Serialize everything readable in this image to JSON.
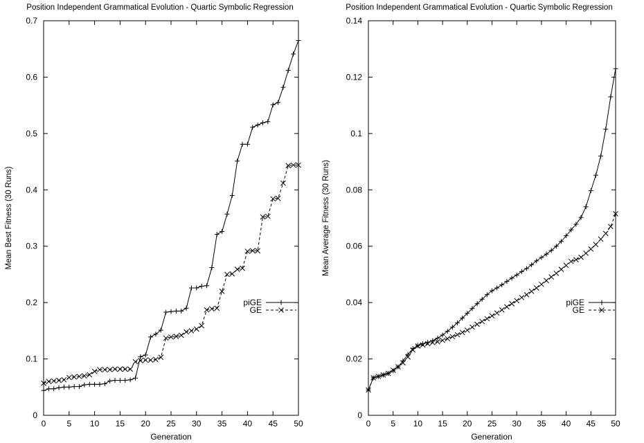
{
  "chart_data": [
    {
      "type": "line",
      "title": "Position Independent Grammatical Evolution - Quartic Symbolic Regression",
      "xlabel": "Generation",
      "ylabel": "Mean Best Fitness (30 Runs)",
      "xlim": [
        0,
        50
      ],
      "ylim": [
        0,
        0.7
      ],
      "xticks": [
        0,
        5,
        10,
        15,
        20,
        25,
        30,
        35,
        40,
        45,
        50
      ],
      "yticks": [
        0,
        0.1,
        0.2,
        0.3,
        0.4,
        0.5,
        0.6,
        0.7
      ],
      "ytick_labels": [
        "0",
        "0.1",
        "0.2",
        "0.3",
        "0.4",
        "0.5",
        "0.6",
        "0.7"
      ],
      "grid": false,
      "legend_position": "right",
      "series": [
        {
          "name": "piGE",
          "marker": "plus",
          "dash": "solid",
          "x": [
            0,
            1,
            2,
            3,
            4,
            5,
            6,
            7,
            8,
            9,
            10,
            11,
            12,
            13,
            14,
            15,
            16,
            17,
            18,
            19,
            20,
            21,
            22,
            23,
            24,
            25,
            26,
            27,
            28,
            29,
            30,
            31,
            32,
            33,
            34,
            35,
            36,
            37,
            38,
            39,
            40,
            41,
            42,
            43,
            44,
            45,
            46,
            47,
            48,
            49,
            50
          ],
          "values": [
            0.044,
            0.047,
            0.047,
            0.049,
            0.05,
            0.05,
            0.051,
            0.051,
            0.054,
            0.055,
            0.055,
            0.055,
            0.056,
            0.061,
            0.062,
            0.062,
            0.062,
            0.063,
            0.066,
            0.104,
            0.107,
            0.139,
            0.144,
            0.151,
            0.183,
            0.184,
            0.185,
            0.185,
            0.19,
            0.226,
            0.226,
            0.229,
            0.23,
            0.262,
            0.321,
            0.326,
            0.357,
            0.39,
            0.451,
            0.481,
            0.481,
            0.511,
            0.515,
            0.519,
            0.521,
            0.551,
            0.555,
            0.582,
            0.612,
            0.641,
            0.665
          ]
        },
        {
          "name": "GE",
          "marker": "cross",
          "dash": "dashed",
          "x": [
            0,
            1,
            2,
            3,
            4,
            5,
            6,
            7,
            8,
            9,
            10,
            11,
            12,
            13,
            14,
            15,
            16,
            17,
            18,
            19,
            20,
            21,
            22,
            23,
            24,
            25,
            26,
            27,
            28,
            29,
            30,
            31,
            32,
            33,
            34,
            35,
            36,
            37,
            38,
            39,
            40,
            41,
            42,
            43,
            44,
            45,
            46,
            47,
            48,
            49,
            50
          ],
          "values": [
            0.057,
            0.06,
            0.061,
            0.062,
            0.063,
            0.067,
            0.068,
            0.069,
            0.07,
            0.072,
            0.078,
            0.081,
            0.081,
            0.081,
            0.082,
            0.082,
            0.082,
            0.082,
            0.095,
            0.097,
            0.098,
            0.098,
            0.099,
            0.103,
            0.137,
            0.139,
            0.14,
            0.142,
            0.148,
            0.15,
            0.153,
            0.159,
            0.187,
            0.189,
            0.19,
            0.22,
            0.25,
            0.251,
            0.259,
            0.261,
            0.291,
            0.292,
            0.292,
            0.352,
            0.353,
            0.384,
            0.385,
            0.412,
            0.443,
            0.444,
            0.444
          ]
        }
      ]
    },
    {
      "type": "line",
      "title": "Position Independent Grammatical Evolution - Quartic Symbolic Regression",
      "xlabel": "Generation",
      "ylabel": "Mean Average Fitness (30 Runs)",
      "xlim": [
        0,
        50
      ],
      "ylim": [
        0,
        0.14
      ],
      "xticks": [
        0,
        5,
        10,
        15,
        20,
        25,
        30,
        35,
        40,
        45,
        50
      ],
      "yticks": [
        0,
        0.02,
        0.04,
        0.06,
        0.08,
        0.1,
        0.12,
        0.14
      ],
      "ytick_labels": [
        "0",
        "0.02",
        "0.04",
        "0.06",
        "0.08",
        "0.1",
        "0.12",
        "0.14"
      ],
      "grid": false,
      "legend_position": "right",
      "series": [
        {
          "name": "piGE",
          "marker": "plus",
          "dash": "solid",
          "x": [
            0,
            1,
            2,
            3,
            4,
            5,
            6,
            7,
            8,
            9,
            10,
            11,
            12,
            13,
            14,
            15,
            16,
            17,
            18,
            19,
            20,
            21,
            22,
            23,
            24,
            25,
            26,
            27,
            28,
            29,
            30,
            31,
            32,
            33,
            34,
            35,
            36,
            37,
            38,
            39,
            40,
            41,
            42,
            43,
            44,
            45,
            46,
            47,
            48,
            49,
            50
          ],
          "values": [
            0.009,
            0.0133,
            0.0138,
            0.0143,
            0.0149,
            0.0158,
            0.0172,
            0.0193,
            0.0216,
            0.0237,
            0.0248,
            0.0254,
            0.0259,
            0.0265,
            0.0274,
            0.0285,
            0.0298,
            0.0313,
            0.0328,
            0.0345,
            0.0362,
            0.0379,
            0.0396,
            0.0412,
            0.0428,
            0.0442,
            0.0452,
            0.0463,
            0.0475,
            0.0487,
            0.0498,
            0.051,
            0.0521,
            0.0534,
            0.0548,
            0.056,
            0.0572,
            0.0585,
            0.06,
            0.0617,
            0.0637,
            0.0658,
            0.0678,
            0.0702,
            0.074,
            0.0797,
            0.0852,
            0.092,
            0.1015,
            0.113,
            0.123
          ]
        },
        {
          "name": "GE",
          "marker": "cross",
          "dash": "dashed",
          "x": [
            0,
            1,
            2,
            3,
            4,
            5,
            6,
            7,
            8,
            9,
            10,
            11,
            12,
            13,
            14,
            15,
            16,
            17,
            18,
            19,
            20,
            21,
            22,
            23,
            24,
            25,
            26,
            27,
            28,
            29,
            30,
            31,
            32,
            33,
            34,
            35,
            36,
            37,
            38,
            39,
            40,
            41,
            42,
            43,
            44,
            45,
            46,
            47,
            48,
            49,
            50
          ],
          "values": [
            0.009,
            0.0133,
            0.0138,
            0.0143,
            0.0149,
            0.016,
            0.0172,
            0.0186,
            0.0207,
            0.0232,
            0.0246,
            0.025,
            0.0254,
            0.0258,
            0.0261,
            0.0266,
            0.0272,
            0.0279,
            0.0286,
            0.0294,
            0.0302,
            0.0313,
            0.0323,
            0.0333,
            0.0343,
            0.0353,
            0.0363,
            0.0374,
            0.0385,
            0.0396,
            0.0407,
            0.0418,
            0.0428,
            0.044,
            0.0452,
            0.0465,
            0.0478,
            0.0491,
            0.0504,
            0.0518,
            0.0532,
            0.0546,
            0.0552,
            0.0561,
            0.0575,
            0.059,
            0.0606,
            0.0625,
            0.0645,
            0.067,
            0.0715
          ]
        }
      ]
    }
  ]
}
